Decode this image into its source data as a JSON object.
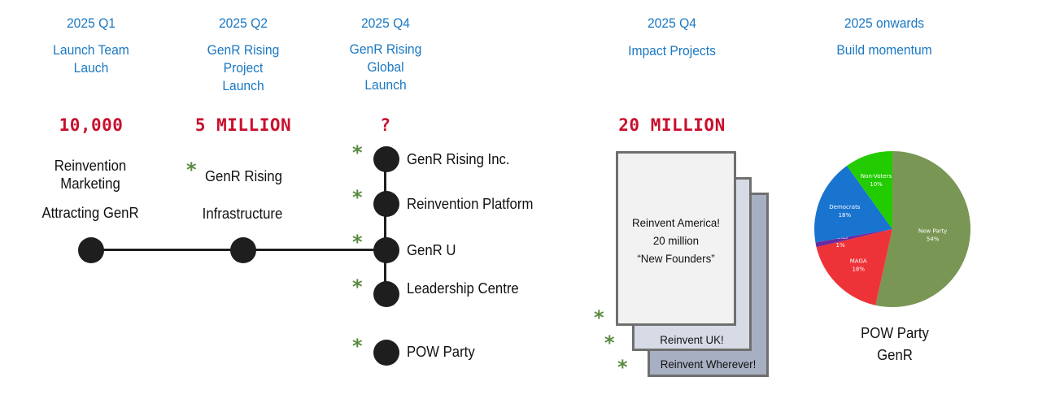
{
  "columns": [
    {
      "period": "2025 Q1",
      "title_lines": [
        "Launch Team",
        "Lauch"
      ],
      "figure": "10,000"
    },
    {
      "period": "2025 Q2",
      "title_lines": [
        "GenR Rising",
        "Project",
        "Launch"
      ],
      "figure": "5 MILLION"
    },
    {
      "period": "2025 Q4",
      "title_lines": [
        "GenR Rising",
        "Global",
        "Launch"
      ],
      "figure": "?"
    },
    {
      "period": "2025 Q4",
      "title_lines": [
        "Impact Projects"
      ],
      "figure": "20 MILLION"
    },
    {
      "period": "2025 onwards",
      "title_lines": [
        "Build momentum"
      ],
      "figure": ""
    }
  ],
  "q1_labels": {
    "line1": "Reinvention",
    "line2": "Marketing",
    "line3": "Attracting GenR"
  },
  "q2_labels": {
    "line1": "GenR Rising",
    "line2": "Infrastructure"
  },
  "q4_items": [
    "GenR Rising Inc.",
    "Reinvention Platform",
    "GenR U",
    "Leadership Centre",
    "POW Party"
  ],
  "asterisk": "*",
  "cards": {
    "front_lines": [
      "Reinvent America!",
      "20 million",
      "“New Founders”"
    ],
    "middle": "Reinvent UK!",
    "back": "Reinvent Wherever!"
  },
  "chart_data": {
    "type": "pie",
    "labels": [
      "New Party",
      "MAGA",
      "Other",
      "Democrats",
      "Non-Voters"
    ],
    "values": [
      54,
      18,
      1,
      18,
      10
    ],
    "value_labels": [
      "54%",
      "18%",
      "1%",
      "18%",
      "10%"
    ],
    "colors": [
      "#7a9655",
      "#ee3338",
      "#6a2aa0",
      "#1874cf",
      "#22cc00"
    ],
    "start_angle_deg": 0,
    "direction": "clockwise"
  },
  "pie_caption": {
    "line1": "POW Party",
    "line2": "GenR"
  },
  "colors": {
    "heading": "#1a78c2",
    "figure": "#c8102e",
    "asterisk": "#5a8b42",
    "node": "#1e1e1e"
  }
}
